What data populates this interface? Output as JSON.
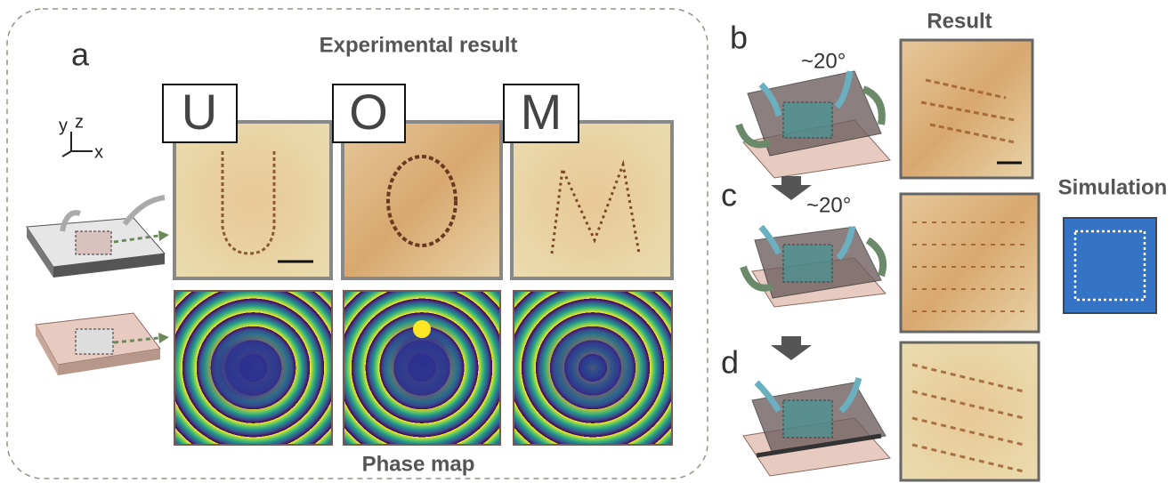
{
  "panels": {
    "a": {
      "label": "a",
      "title": "Experimental result",
      "letters": [
        "U",
        "O",
        "M"
      ],
      "axes": [
        "y",
        "z",
        "x"
      ],
      "caption": "Phase map"
    },
    "b": {
      "label": "b",
      "angle": "~20°"
    },
    "c": {
      "label": "c",
      "angle": "~20°"
    },
    "d": {
      "label": "d"
    },
    "result_title": "Result",
    "simulation_title": "Simulation"
  }
}
